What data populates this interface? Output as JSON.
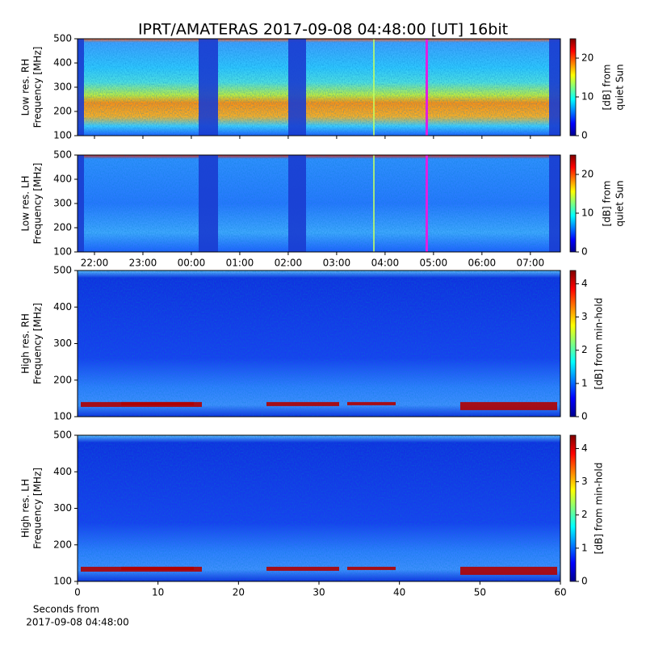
{
  "chart_data": [
    {
      "type": "heatmap",
      "title": "IPRT/AMATERAS 2017-09-08 04:48:00 [UT]   16bit",
      "ylabel": [
        "Low res. RH",
        "Frequency [MHz]"
      ],
      "ylim": [
        100,
        500
      ],
      "yticks": [
        100,
        200,
        300,
        400,
        500
      ],
      "xlim": [
        21.65,
        31.62
      ],
      "colorbar_label": [
        "[dB] from",
        "quiet Sun"
      ],
      "clim": [
        0,
        25
      ],
      "cticks": [
        0,
        10,
        20
      ]
    },
    {
      "type": "heatmap",
      "ylabel": [
        "Low res. LH",
        "Frequency [MHz]"
      ],
      "ylim": [
        100,
        500
      ],
      "yticks": [
        100,
        200,
        300,
        400,
        500
      ],
      "xlim": [
        21.65,
        31.62
      ],
      "xticks": [
        {
          "value": 22,
          "label": "22:00"
        },
        {
          "value": 23,
          "label": "23:00"
        },
        {
          "value": 24,
          "label": "00:00"
        },
        {
          "value": 25,
          "label": "01:00"
        },
        {
          "value": 26,
          "label": "02:00"
        },
        {
          "value": 27,
          "label": "03:00"
        },
        {
          "value": 28,
          "label": "04:00"
        },
        {
          "value": 29,
          "label": "05:00"
        },
        {
          "value": 30,
          "label": "06:00"
        },
        {
          "value": 31,
          "label": "07:00"
        }
      ],
      "colorbar_label": [
        "[dB] from",
        "quiet Sun"
      ],
      "clim": [
        0,
        25
      ],
      "cticks": [
        0,
        10,
        20
      ]
    },
    {
      "type": "heatmap",
      "ylabel": [
        "High res. RH",
        "Frequency [MHz]"
      ],
      "ylim": [
        100,
        500
      ],
      "yticks": [
        100,
        200,
        300,
        400,
        500
      ],
      "xlim": [
        0,
        60
      ],
      "colorbar_label": [
        "[dB] from min-hold"
      ],
      "clim": [
        0,
        4.4
      ],
      "cticks": [
        0,
        1,
        2,
        3,
        4
      ]
    },
    {
      "type": "heatmap",
      "ylabel": [
        "High res. LH",
        "Frequency [MHz]"
      ],
      "ylim": [
        100,
        500
      ],
      "yticks": [
        100,
        200,
        300,
        400,
        500
      ],
      "xlim": [
        0,
        60
      ],
      "xticks": [
        0,
        10,
        20,
        30,
        40,
        50,
        60
      ],
      "xlabel": [
        "Seconds from",
        "2017-09-08 04:48:00"
      ],
      "colorbar_label": [
        "[dB] from min-hold"
      ],
      "clim": [
        0,
        4.4
      ],
      "cticks": [
        0,
        1,
        2,
        3,
        4
      ]
    }
  ]
}
